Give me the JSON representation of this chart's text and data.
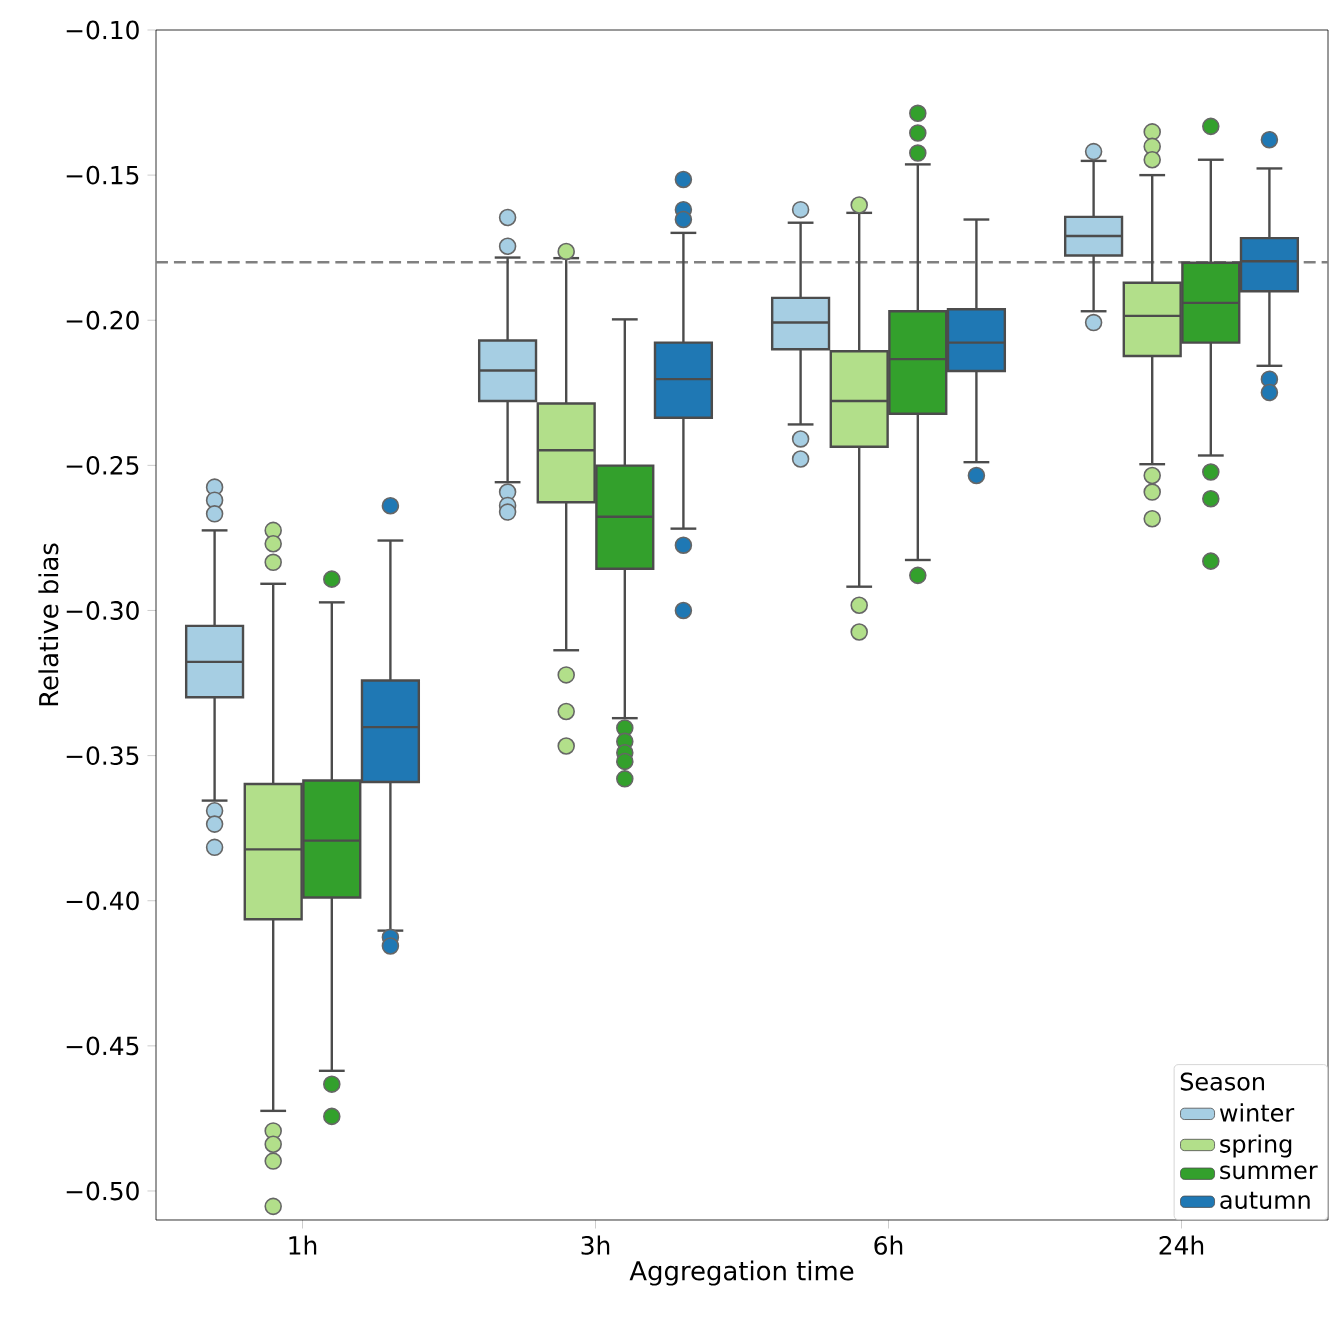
{
  "chart_data": {
    "type": "box",
    "xlabel": "Aggregation time",
    "ylabel": "Relative bias",
    "legend_title": "Season",
    "legend": "bottom right",
    "categories": [
      "1h",
      "3h",
      "6h",
      "24h"
    ],
    "ylim": [
      -0.51,
      -0.1
    ],
    "yticks": [
      {
        "value": -0.1,
        "label": "−0.10"
      },
      {
        "value": -0.15,
        "label": "−0.15"
      },
      {
        "value": -0.2,
        "label": "−0.20"
      },
      {
        "value": -0.25,
        "label": "−0.25"
      },
      {
        "value": -0.3,
        "label": "−0.30"
      },
      {
        "value": -0.35,
        "label": "−0.35"
      },
      {
        "value": -0.4,
        "label": "−0.40"
      },
      {
        "value": -0.45,
        "label": "−0.45"
      },
      {
        "value": -0.5,
        "label": "−0.50"
      }
    ],
    "ref_lines": [
      {
        "axis": "y",
        "value": -0.18,
        "color": "#808080",
        "line_style": "dashed"
      }
    ],
    "series": [
      {
        "name": "winter",
        "color": "#a6cee3",
        "boxes": [
          {
            "low": -0.3655,
            "q1": -0.3299,
            "median": -0.3177,
            "q3": -0.3053,
            "high": -0.2724,
            "outliers": [
              -0.2575,
              -0.262,
              -0.2667,
              -0.369,
              -0.3736,
              -0.3816
            ]
          },
          {
            "low": -0.2558,
            "q1": -0.2278,
            "median": -0.2173,
            "q3": -0.207,
            "high": -0.1784,
            "outliers": [
              -0.1646,
              -0.1745,
              -0.2592,
              -0.2638,
              -0.2661
            ]
          },
          {
            "low": -0.2359,
            "q1": -0.21,
            "median": -0.2008,
            "q3": -0.1923,
            "high": -0.1664,
            "outliers": [
              -0.1619,
              -0.2409,
              -0.2478
            ]
          },
          {
            "low": -0.1969,
            "q1": -0.1777,
            "median": -0.171,
            "q3": -0.1644,
            "high": -0.1451,
            "outliers": [
              -0.1419,
              -0.2008
            ]
          }
        ]
      },
      {
        "name": "spring",
        "color": "#b2df8a",
        "boxes": [
          {
            "low": -0.4724,
            "q1": -0.4064,
            "median": -0.3823,
            "q3": -0.3598,
            "high": -0.2908,
            "outliers": [
              -0.2724,
              -0.277,
              -0.2834,
              -0.4793,
              -0.4839,
              -0.4897,
              -0.5053
            ]
          },
          {
            "low": -0.3137,
            "q1": -0.2627,
            "median": -0.2448,
            "q3": -0.2287,
            "high": -0.1786,
            "outliers": [
              -0.1763,
              -0.3222,
              -0.3348,
              -0.3467
            ]
          },
          {
            "low": -0.2918,
            "q1": -0.2436,
            "median": -0.2278,
            "q3": -0.2107,
            "high": -0.163,
            "outliers": [
              -0.1603,
              -0.2982,
              -0.3074
            ]
          },
          {
            "low": -0.2496,
            "q1": -0.2123,
            "median": -0.1985,
            "q3": -0.1871,
            "high": -0.15,
            "outliers": [
              -0.1351,
              -0.1401,
              -0.1447,
              -0.2535,
              -0.2592,
              -0.2684
            ]
          }
        ]
      },
      {
        "name": "summer",
        "color": "#33a02c",
        "boxes": [
          {
            "low": -0.4586,
            "q1": -0.3989,
            "median": -0.3793,
            "q3": -0.3586,
            "high": -0.2972,
            "outliers": [
              -0.2892,
              -0.4632,
              -0.4743
            ]
          },
          {
            "low": -0.3371,
            "q1": -0.2856,
            "median": -0.2677,
            "q3": -0.2501,
            "high": -0.1997,
            "outliers": [
              -0.3405,
              -0.3451,
              -0.349,
              -0.352,
              -0.358
            ]
          },
          {
            "low": -0.2826,
            "q1": -0.2322,
            "median": -0.2134,
            "q3": -0.1969,
            "high": -0.1463,
            "outliers": [
              -0.1287,
              -0.1355,
              -0.1424,
              -0.2879
            ]
          },
          {
            "low": -0.2466,
            "q1": -0.2077,
            "median": -0.194,
            "q3": -0.1802,
            "high": -0.1447,
            "outliers": [
              -0.1332,
              -0.2523,
              -0.2615,
              -0.283
            ]
          }
        ]
      },
      {
        "name": "autumn",
        "color": "#1f78b4",
        "boxes": [
          {
            "low": -0.4103,
            "q1": -0.3591,
            "median": -0.3402,
            "q3": -0.3241,
            "high": -0.2759,
            "outliers": [
              -0.2639,
              -0.4126,
              -0.4156
            ]
          },
          {
            "low": -0.2718,
            "q1": -0.2336,
            "median": -0.2203,
            "q3": -0.2077,
            "high": -0.1699,
            "outliers": [
              -0.1515,
              -0.1619,
              -0.1653,
              -0.2775,
              -0.3
            ]
          },
          {
            "low": -0.2489,
            "q1": -0.2175,
            "median": -0.2077,
            "q3": -0.1962,
            "high": -0.1653,
            "outliers": [
              -0.2535
            ]
          },
          {
            "low": -0.2157,
            "q1": -0.19,
            "median": -0.1797,
            "q3": -0.1717,
            "high": -0.1477,
            "outliers": [
              -0.1378,
              -0.2203,
              -0.2249
            ]
          }
        ]
      }
    ]
  }
}
